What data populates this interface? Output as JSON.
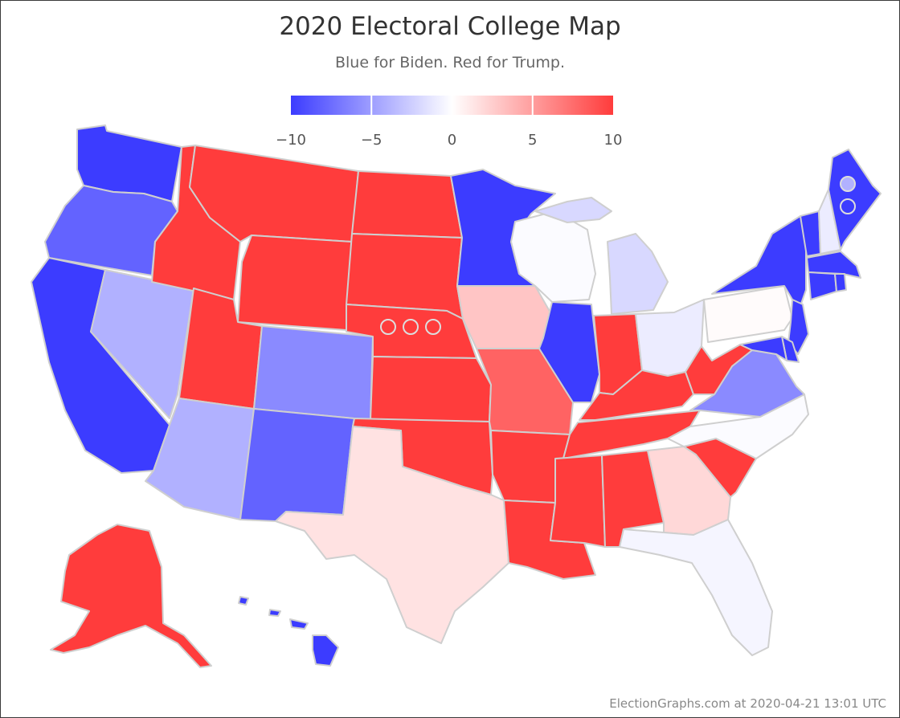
{
  "title": "2020 Electoral College Map",
  "subtitle": "Blue for Biden. Red for Trump.",
  "credits": "ElectionGraphs.com at 2020-04-21 13:01 UTC",
  "colors": {
    "biden_max": "#3c3cff",
    "neutral": "#ffffff",
    "trump_max": "#ff3c3c",
    "state_border": "#cfcfcf"
  },
  "legend": {
    "min": -10,
    "max": 10,
    "ticks": [
      {
        "value": -10,
        "label": "−10"
      },
      {
        "value": -5,
        "label": "−5"
      },
      {
        "value": 0,
        "label": "0"
      },
      {
        "value": 5,
        "label": "5"
      },
      {
        "value": 10,
        "label": "10"
      }
    ]
  },
  "states": [
    {
      "code": "WA",
      "margin": -10
    },
    {
      "code": "OR",
      "margin": -8
    },
    {
      "code": "CA",
      "margin": -10
    },
    {
      "code": "NV",
      "margin": -4
    },
    {
      "code": "ID",
      "margin": 10
    },
    {
      "code": "MT",
      "margin": 10
    },
    {
      "code": "WY",
      "margin": 10
    },
    {
      "code": "UT",
      "margin": 10
    },
    {
      "code": "AZ",
      "margin": -4
    },
    {
      "code": "CO",
      "margin": -6
    },
    {
      "code": "NM",
      "margin": -8
    },
    {
      "code": "ND",
      "margin": 10
    },
    {
      "code": "SD",
      "margin": 10
    },
    {
      "code": "NE",
      "margin": 10
    },
    {
      "code": "KS",
      "margin": 10
    },
    {
      "code": "OK",
      "margin": 10
    },
    {
      "code": "TX",
      "margin": 1.5
    },
    {
      "code": "MN",
      "margin": -10
    },
    {
      "code": "IA",
      "margin": 3
    },
    {
      "code": "MO",
      "margin": 8
    },
    {
      "code": "AR",
      "margin": 10
    },
    {
      "code": "LA",
      "margin": 10
    },
    {
      "code": "WI",
      "margin": -0.2
    },
    {
      "code": "IL",
      "margin": -10
    },
    {
      "code": "MI",
      "margin": -2
    },
    {
      "code": "IN",
      "margin": 10
    },
    {
      "code": "OH",
      "margin": -1
    },
    {
      "code": "KY",
      "margin": 10
    },
    {
      "code": "TN",
      "margin": 10
    },
    {
      "code": "MS",
      "margin": 10
    },
    {
      "code": "AL",
      "margin": 10
    },
    {
      "code": "GA",
      "margin": 2
    },
    {
      "code": "FL",
      "margin": -0.5
    },
    {
      "code": "SC",
      "margin": 10
    },
    {
      "code": "NC",
      "margin": -0.2
    },
    {
      "code": "VA",
      "margin": -6
    },
    {
      "code": "WV",
      "margin": 10
    },
    {
      "code": "PA",
      "margin": 0.2
    },
    {
      "code": "NY",
      "margin": -10
    },
    {
      "code": "NJ",
      "margin": -10
    },
    {
      "code": "DE",
      "margin": -10
    },
    {
      "code": "MD",
      "margin": -10
    },
    {
      "code": "VT",
      "margin": -10
    },
    {
      "code": "NH",
      "margin": -1
    },
    {
      "code": "ME",
      "margin": -10
    },
    {
      "code": "MA",
      "margin": -10
    },
    {
      "code": "CT",
      "margin": -10
    },
    {
      "code": "RI",
      "margin": -10
    },
    {
      "code": "AK",
      "margin": 10
    },
    {
      "code": "HI",
      "margin": -10
    }
  ],
  "districts": [
    {
      "state": "NE",
      "district": 1,
      "margin": 10
    },
    {
      "state": "NE",
      "district": 2,
      "margin": 10
    },
    {
      "state": "NE",
      "district": 3,
      "margin": 10
    },
    {
      "state": "ME",
      "district": 1,
      "margin": -4
    },
    {
      "state": "ME",
      "district": 2,
      "margin": -10
    }
  ]
}
